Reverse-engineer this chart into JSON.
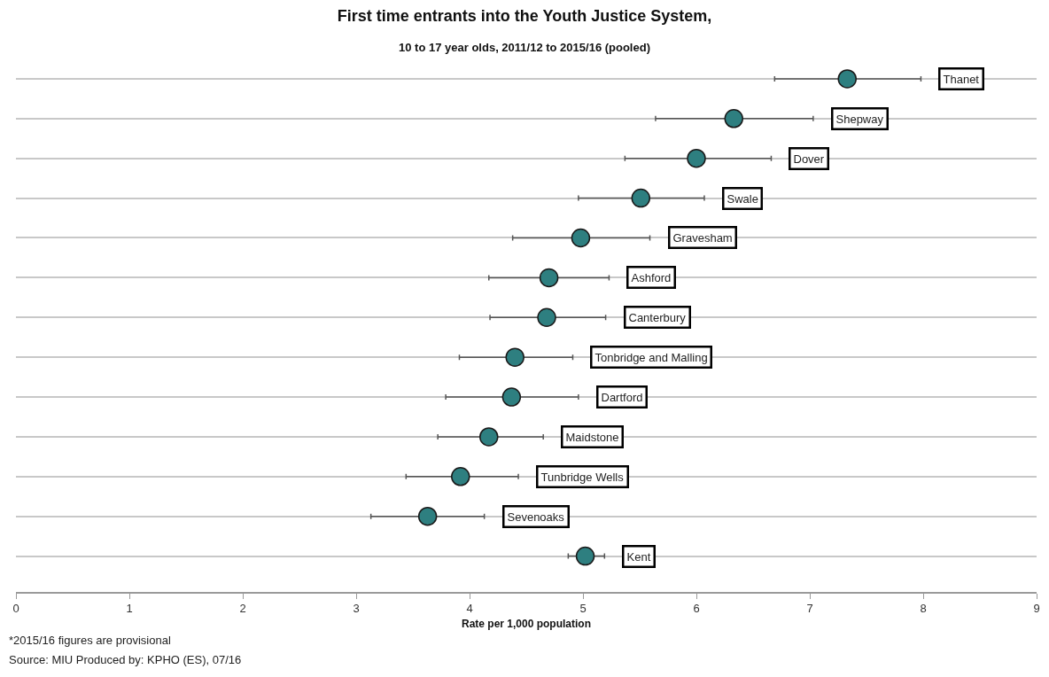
{
  "chart_data": {
    "type": "scatter",
    "orientation": "horizontal",
    "title": "First time entrants into the Youth Justice System,",
    "subtitle": "10 to 17 year olds, 2011/12 to 2015/16 (pooled)",
    "xlabel": "Rate per 1,000 population",
    "categories": [
      "Thanet",
      "Shepway",
      "Dover",
      "Swale",
      "Gravesham",
      "Ashford",
      "Canterbury",
      "Tonbridge and Malling",
      "Dartford",
      "Maidstone",
      "Tunbridge Wells",
      "Sevenoaks",
      "Kent"
    ],
    "values": [
      7.33,
      6.33,
      6.0,
      5.51,
      4.98,
      4.7,
      4.68,
      4.4,
      4.37,
      4.17,
      3.92,
      3.63,
      5.02
    ],
    "errors": [
      [
        6.69,
        7.98
      ],
      [
        5.64,
        7.03
      ],
      [
        5.37,
        6.66
      ],
      [
        4.96,
        6.07
      ],
      [
        4.38,
        5.59
      ],
      [
        4.17,
        5.23
      ],
      [
        4.18,
        5.2
      ],
      [
        3.91,
        4.91
      ],
      [
        3.79,
        4.96
      ],
      [
        3.72,
        4.65
      ],
      [
        3.44,
        4.43
      ],
      [
        3.13,
        4.13
      ],
      [
        4.87,
        5.19
      ]
    ],
    "color": "#2e7f80",
    "marker": "circle",
    "xlim": [
      0,
      9
    ],
    "xticks": [
      0,
      1,
      2,
      3,
      4,
      5,
      6,
      7,
      8,
      9
    ],
    "grid": "y",
    "tick_labels": "x",
    "annotations": [
      "*2015/16 figures are provisional",
      "Source: MIU Produced by: KPHO (ES), 07/16"
    ]
  }
}
